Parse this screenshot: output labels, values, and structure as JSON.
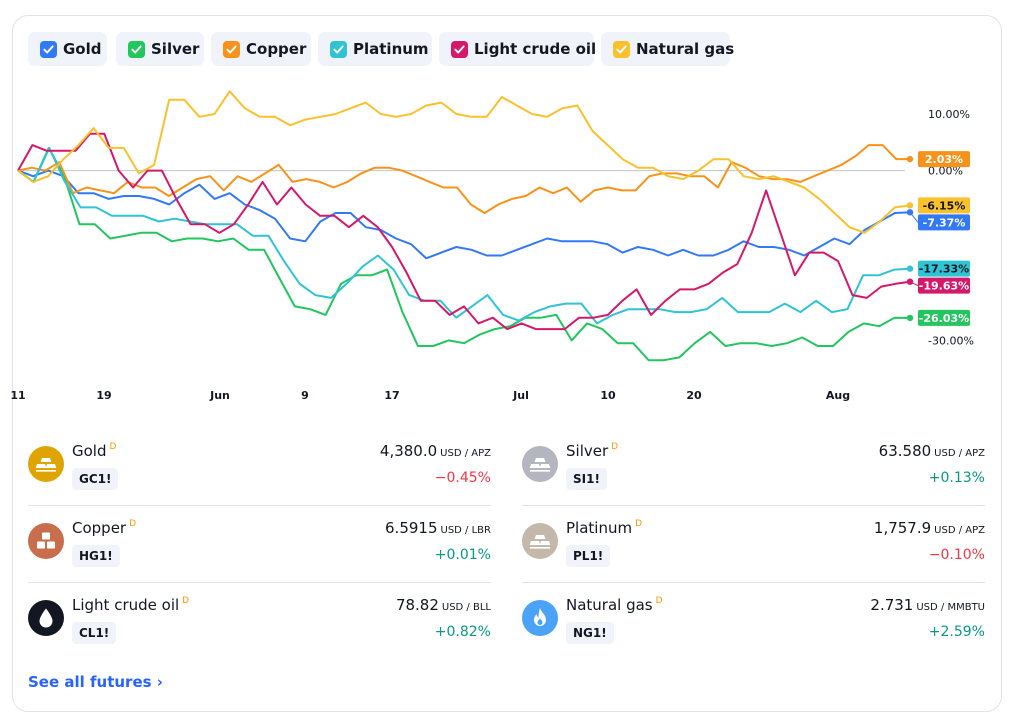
{
  "legend": [
    {
      "label": "Gold",
      "color": "#3179f5"
    },
    {
      "label": "Silver",
      "color": "#22c55e"
    },
    {
      "label": "Copper",
      "color": "#f7931a"
    },
    {
      "label": "Platinum",
      "color": "#2fc4d4"
    },
    {
      "label": "Light crude oil",
      "color": "#d4196a"
    },
    {
      "label": "Natural gas",
      "color": "#f9c12e"
    }
  ],
  "chart_data": {
    "type": "line",
    "x_ticks": [
      "11",
      "19",
      "Jun",
      "9",
      "17",
      "Jul",
      "10",
      "20",
      "Aug"
    ],
    "y_ticks": [
      "10.00%",
      "0.00%",
      "-30.00%"
    ],
    "ylim": [
      -37,
      16
    ],
    "zero_line": true,
    "series": [
      {
        "name": "Gold",
        "color": "#3179f5",
        "end_label": "-7.37%",
        "values": [
          0,
          -1,
          0,
          -1,
          -4,
          -4,
          -5,
          -4.5,
          -4.5,
          -5,
          -6,
          -4,
          -2.5,
          -5,
          -4,
          -6,
          -7,
          -8.5,
          -12,
          -12.5,
          -9,
          -7.5,
          -7.5,
          -10,
          -10.5,
          -12,
          -13,
          -15.5,
          -14.5,
          -13.5,
          -14,
          -15,
          -15,
          -14,
          -13,
          -12,
          -12.5,
          -12.5,
          -12.5,
          -13,
          -14.5,
          -13.5,
          -14,
          -15,
          -14,
          -15,
          -15,
          -14,
          -12.5,
          -13.5,
          -13.5,
          -14,
          -15,
          -13.5,
          -12,
          -13,
          -10.5,
          -9,
          -7.5,
          -7.37
        ]
      },
      {
        "name": "Silver",
        "color": "#22c55e",
        "end_label": "-26.03%",
        "values": [
          0,
          -2,
          4,
          -1,
          -9.5,
          -9.5,
          -12,
          -11.5,
          -11,
          -11,
          -12.5,
          -12,
          -12,
          -12.5,
          -12,
          -14,
          -14,
          -19,
          -24,
          -24.5,
          -25.5,
          -20,
          -18.5,
          -18.5,
          -17.5,
          -25,
          -31,
          -31,
          -30,
          -30.5,
          -29,
          -28,
          -27.5,
          -26,
          -26,
          -25.5,
          -30,
          -27,
          -28,
          -30.5,
          -30.5,
          -33.5,
          -33.5,
          -33,
          -30.5,
          -28.5,
          -31,
          -30.5,
          -30.5,
          -31,
          -30.5,
          -29.5,
          -31,
          -31,
          -28.5,
          -27,
          -27.5,
          -26,
          -26.03
        ]
      },
      {
        "name": "Copper",
        "color": "#f7931a",
        "end_label": "2.03%",
        "values": [
          0,
          0.5,
          0,
          1.5,
          -4,
          -3,
          -3.5,
          -4,
          -2,
          -3,
          -3,
          -4.5,
          -3,
          -1.5,
          -1,
          -3.5,
          -1,
          -2,
          -0.5,
          1,
          -2,
          -1.5,
          -2,
          -3,
          -2,
          -0.5,
          0.5,
          0.5,
          0,
          -1,
          -2,
          -3,
          -3,
          -6,
          -7.5,
          -6,
          -5,
          -4.5,
          -3,
          -4,
          -3,
          -5.5,
          -3.5,
          -3,
          -3.5,
          -3.5,
          -1,
          -0.5,
          -0.5,
          -1,
          -1,
          -3,
          1.5,
          0.5,
          -1,
          -1.5,
          -1.5,
          -2,
          -1,
          0,
          1,
          2.5,
          4.5,
          4.5,
          2.03,
          2.03
        ]
      },
      {
        "name": "Platinum",
        "color": "#2fc4d4",
        "end_label": "-17.33%",
        "values": [
          0,
          -2,
          4,
          -2,
          -6.5,
          -6.5,
          -8,
          -8,
          -8,
          -9,
          -8.5,
          -9,
          -9.5,
          -9.5,
          -9.5,
          -11.5,
          -11.5,
          -16,
          -20,
          -22,
          -22.5,
          -20,
          -17,
          -15,
          -17.5,
          -22,
          -23,
          -23,
          -26,
          -24,
          -22,
          -25.5,
          -26.5,
          -25,
          -24,
          -23.5,
          -23.5,
          -27,
          -25.5,
          -24.5,
          -24.5,
          -24.5,
          -25,
          -25,
          -24.5,
          -22.5,
          -25,
          -25,
          -25,
          -23.5,
          -25,
          -23,
          -25,
          -24.5,
          -18.5,
          -18.5,
          -17.5,
          -17.33
        ]
      },
      {
        "name": "Light crude oil",
        "color": "#d4196a",
        "end_label": "-19.63%",
        "values": [
          0,
          4.5,
          3.5,
          3.5,
          3.5,
          6.5,
          6.5,
          0,
          -3,
          0,
          0,
          -5,
          -9.5,
          -9.5,
          -11,
          -9.5,
          -6,
          -2,
          -6,
          -3,
          -6,
          -8,
          -8,
          -10,
          -8,
          -10,
          -13.5,
          -18,
          -23,
          -23,
          -25.5,
          -24,
          -27,
          -26,
          -28,
          -27,
          -28,
          -28,
          -28,
          -26,
          -26,
          -25.5,
          -23,
          -21,
          -25.5,
          -23,
          -21,
          -21,
          -20,
          -18,
          -16.5,
          -11,
          -3.5,
          -11,
          -18.5,
          -14.5,
          -14.5,
          -16,
          -22,
          -22.5,
          -20.5,
          -20,
          -19.63
        ]
      },
      {
        "name": "Natural gas",
        "color": "#f9c12e",
        "end_label": "-6.15%",
        "values": [
          0,
          -2,
          -1,
          2,
          4.5,
          7.5,
          4,
          4,
          -0.5,
          1,
          12.5,
          12.5,
          9.5,
          10,
          14,
          11,
          9.5,
          9.5,
          8,
          9,
          9.5,
          10,
          11,
          12,
          10,
          9.5,
          10,
          11.5,
          12,
          10,
          9.5,
          9.5,
          13,
          11.5,
          10,
          9.5,
          11,
          11.5,
          7,
          4.5,
          2,
          0.5,
          0.5,
          -1,
          -1.5,
          0,
          2,
          2,
          -1,
          -1.5,
          -1,
          -2,
          -3,
          -5,
          -7.5,
          -10,
          -11,
          -9,
          -6.5,
          -6.15
        ]
      }
    ]
  },
  "futures": [
    {
      "name": "Gold",
      "flag": "D",
      "ticker": "GC1!",
      "price": "4,380.0",
      "unit": "USD / APZ",
      "change": "−0.45%",
      "dir": "neg",
      "icon": "gold-bars-icon",
      "icon_color": "#e0a400"
    },
    {
      "name": "Silver",
      "flag": "D",
      "ticker": "SI1!",
      "price": "63.580",
      "unit": "USD / APZ",
      "change": "+0.13%",
      "dir": "pos",
      "icon": "silver-bars-icon",
      "icon_color": "#b3b6bf"
    },
    {
      "name": "Copper",
      "flag": "D",
      "ticker": "HG1!",
      "price": "6.5915",
      "unit": "USD / LBR",
      "change": "+0.01%",
      "dir": "pos",
      "icon": "copper-blocks-icon",
      "icon_color": "#c86e4c"
    },
    {
      "name": "Platinum",
      "flag": "D",
      "ticker": "PL1!",
      "price": "1,757.9",
      "unit": "USD / APZ",
      "change": "−0.10%",
      "dir": "neg",
      "icon": "platinum-bars-icon",
      "icon_color": "#c3b8aa"
    },
    {
      "name": "Light crude oil",
      "flag": "D",
      "ticker": "CL1!",
      "price": "78.82",
      "unit": "USD / BLL",
      "change": "+0.82%",
      "dir": "pos",
      "icon": "oil-drop-icon",
      "icon_color": "#131722"
    },
    {
      "name": "Natural gas",
      "flag": "D",
      "ticker": "NG1!",
      "price": "2.731",
      "unit": "USD / MMBTU",
      "change": "+2.59%",
      "dir": "pos",
      "icon": "flame-icon",
      "icon_color": "#4aa3f7"
    }
  ],
  "see_all": "See all futures ›"
}
